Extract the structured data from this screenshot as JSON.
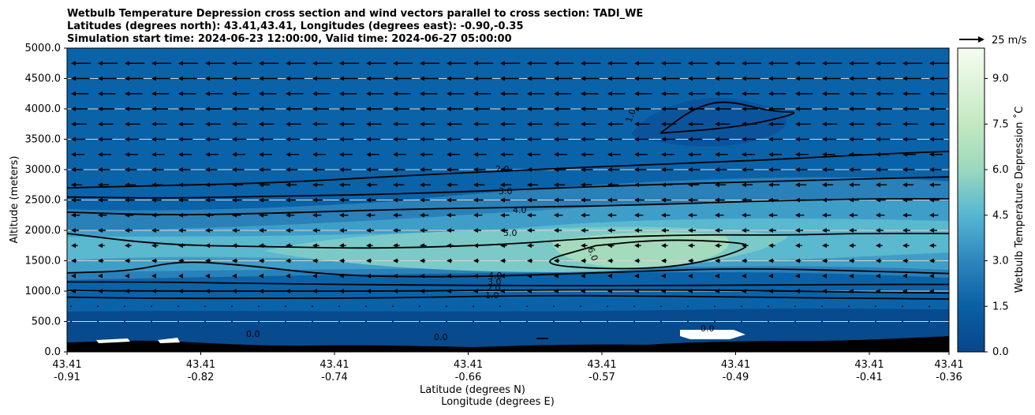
{
  "chart_data": {
    "type": "contour",
    "title_lines": [
      "Wetbulb Temperature Depression cross section and wind vectors parallel to cross section: TADI_WE",
      "Latitudes (degrees north): 43.41,43.41, Longitudes (degrees east): -0.90,-0.35",
      "Simulation start time: 2024-06-23 12:00:00, Valid time: 2024-06-27 05:00:00"
    ],
    "ylabel": "Altitude (meters)",
    "xlabel_lat": "Latitude (degrees N)",
    "xlabel_lon": "Longitude (degrees E)",
    "ylim": [
      0,
      5000
    ],
    "y_ticks": [
      "0.0",
      "500.0",
      "1000.0",
      "1500.0",
      "2000.0",
      "2500.0",
      "3000.0",
      "3500.0",
      "4000.0",
      "4500.0",
      "5000.0"
    ],
    "x_ticks": [
      {
        "lat": "43.41",
        "lon": "-0.91"
      },
      {
        "lat": "43.41",
        "lon": "-0.82"
      },
      {
        "lat": "43.41",
        "lon": "-0.74"
      },
      {
        "lat": "43.41",
        "lon": "-0.66"
      },
      {
        "lat": "43.41",
        "lon": "-0.57"
      },
      {
        "lat": "43.41",
        "lon": "-0.49"
      },
      {
        "lat": "43.41",
        "lon": "-0.41"
      },
      {
        "lat": "43.41",
        "lon": "-0.36"
      }
    ],
    "grid": "horizontal",
    "colorbar": {
      "label": "Wetbulb Temperature Depression ˚C",
      "ticks": [
        "0.0",
        "1.5",
        "3.0",
        "4.5",
        "6.0",
        "7.5",
        "9.0"
      ],
      "range": [
        0,
        10
      ],
      "colormap": "GnBu_r"
    },
    "wind_key": {
      "label": "25 m/s"
    },
    "contour_labels": [
      "1.0",
      "2.0",
      "3.0",
      "4.0",
      "5.0",
      "6.0",
      "0.0"
    ],
    "contours": [
      {
        "level": 1.0,
        "points": [
          [
            -0.91,
            900
          ],
          [
            -0.85,
            880
          ],
          [
            -0.78,
            880
          ],
          [
            -0.7,
            890
          ],
          [
            -0.62,
            930
          ],
          [
            -0.55,
            920
          ],
          [
            -0.48,
            900
          ],
          [
            -0.41,
            880
          ],
          [
            -0.36,
            870
          ]
        ]
      },
      {
        "level": 2.0,
        "points": [
          [
            -0.91,
            1010
          ],
          [
            -0.85,
            1000
          ],
          [
            -0.78,
            1000
          ],
          [
            -0.7,
            1000
          ],
          [
            -0.62,
            1020
          ],
          [
            -0.55,
            1020
          ],
          [
            -0.48,
            1010
          ],
          [
            -0.41,
            980
          ],
          [
            -0.36,
            970
          ]
        ]
      },
      {
        "level": 3.0,
        "points": [
          [
            -0.91,
            1150
          ],
          [
            -0.85,
            1150
          ],
          [
            -0.78,
            1120
          ],
          [
            -0.7,
            1100
          ],
          [
            -0.62,
            1090
          ],
          [
            -0.55,
            1090
          ],
          [
            -0.48,
            1100
          ],
          [
            -0.41,
            1110
          ],
          [
            -0.36,
            1110
          ]
        ]
      },
      {
        "level": 4.0,
        "points": [
          [
            -0.91,
            1300
          ],
          [
            -0.87,
            1330
          ],
          [
            -0.84,
            1500
          ],
          [
            -0.8,
            1430
          ],
          [
            -0.74,
            1250
          ],
          [
            -0.66,
            1230
          ],
          [
            -0.57,
            1310
          ],
          [
            -0.49,
            1380
          ],
          [
            -0.41,
            1330
          ],
          [
            -0.36,
            1290
          ]
        ]
      },
      {
        "level": 5.0,
        "points": [
          [
            -0.91,
            1950
          ],
          [
            -0.85,
            1760
          ],
          [
            -0.78,
            1730
          ],
          [
            -0.72,
            1700
          ],
          [
            -0.64,
            1760
          ],
          [
            -0.58,
            1880
          ],
          [
            -0.52,
            1930
          ],
          [
            -0.46,
            1920
          ],
          [
            -0.42,
            1950
          ],
          [
            -0.36,
            1950
          ]
        ]
      },
      {
        "level": 6.0,
        "points": [
          [
            -0.58,
            1750
          ],
          [
            -0.54,
            1850
          ],
          [
            -0.5,
            1820
          ],
          [
            -0.48,
            1750
          ],
          [
            -0.52,
            1420
          ],
          [
            -0.57,
            1350
          ],
          [
            -0.62,
            1450
          ],
          [
            -0.58,
            1750
          ]
        ]
      },
      {
        "level": 2.0,
        "points": [
          [
            -0.91,
            2700
          ],
          [
            -0.85,
            2740
          ],
          [
            -0.78,
            2780
          ],
          [
            -0.7,
            2900
          ],
          [
            -0.62,
            3000
          ],
          [
            -0.55,
            3080
          ],
          [
            -0.48,
            3150
          ],
          [
            -0.41,
            3250
          ],
          [
            -0.36,
            3300
          ]
        ]
      },
      {
        "level": 3.0,
        "points": [
          [
            -0.91,
            2550
          ],
          [
            -0.85,
            2530
          ],
          [
            -0.78,
            2560
          ],
          [
            -0.7,
            2600
          ],
          [
            -0.62,
            2680
          ],
          [
            -0.55,
            2750
          ],
          [
            -0.48,
            2800
          ],
          [
            -0.41,
            2850
          ],
          [
            -0.36,
            2880
          ]
        ]
      },
      {
        "level": 4.0,
        "points": [
          [
            -0.91,
            2300
          ],
          [
            -0.85,
            2250
          ],
          [
            -0.78,
            2280
          ],
          [
            -0.7,
            2350
          ],
          [
            -0.62,
            2380
          ],
          [
            -0.55,
            2420
          ],
          [
            -0.48,
            2480
          ],
          [
            -0.41,
            2520
          ],
          [
            -0.36,
            2520
          ]
        ]
      },
      {
        "level": 1.0,
        "points": [
          [
            -0.54,
            3600
          ],
          [
            -0.52,
            4000
          ],
          [
            -0.5,
            4150
          ],
          [
            -0.47,
            3950
          ],
          [
            -0.45,
            3950
          ],
          [
            -0.49,
            3700
          ],
          [
            -0.54,
            3600
          ]
        ]
      }
    ]
  }
}
